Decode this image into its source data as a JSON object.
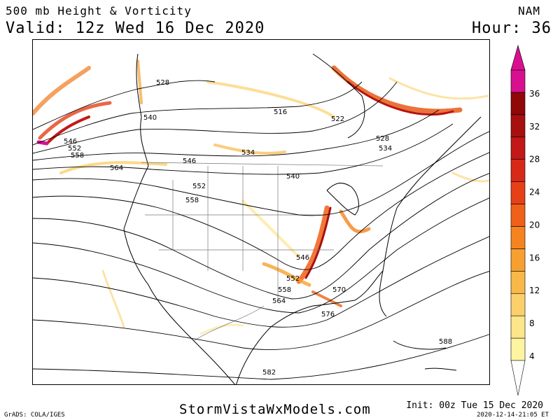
{
  "header": {
    "title": "500 mb Height & Vorticity",
    "valid": "Valid: 12z Wed 16 Dec 2020",
    "model": "NAM",
    "hour": "Hour: 36"
  },
  "footer": {
    "site": "StormVistaWxModels.com",
    "init": "Init: 00z Tue 15 Dec 2020",
    "timestamp": "2020-12-14-21:05 ET",
    "grads": "GrADS: COLA/IGES"
  },
  "contour_labels": [
    "528",
    "540",
    "546",
    "552",
    "558",
    "564",
    "546",
    "552",
    "558",
    "516",
    "522",
    "528",
    "534",
    "534",
    "540",
    "546",
    "552",
    "558",
    "564",
    "570",
    "576",
    "582",
    "588"
  ],
  "colorbar": {
    "ticks": [
      "4",
      "8",
      "12",
      "16",
      "20",
      "24",
      "28",
      "32",
      "36"
    ],
    "colors": [
      "#fff5a0",
      "#fde58a",
      "#fbd06a",
      "#f9b84a",
      "#f7a030",
      "#f58420",
      "#f06018",
      "#e64018",
      "#d82818",
      "#c41818",
      "#a81010",
      "#900808",
      "#d81090"
    ]
  }
}
